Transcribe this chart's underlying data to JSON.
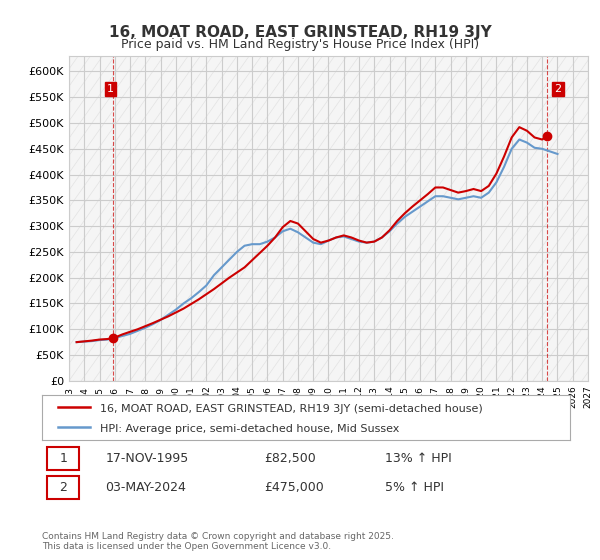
{
  "title": "16, MOAT ROAD, EAST GRINSTEAD, RH19 3JY",
  "subtitle": "Price paid vs. HM Land Registry's House Price Index (HPI)",
  "ylabel": "",
  "ylim": [
    0,
    630000
  ],
  "yticks": [
    0,
    50000,
    100000,
    150000,
    200000,
    250000,
    300000,
    350000,
    400000,
    450000,
    500000,
    550000,
    600000
  ],
  "ytick_labels": [
    "£0",
    "£50K",
    "£100K",
    "£150K",
    "£200K",
    "£250K",
    "£300K",
    "£350K",
    "£400K",
    "£450K",
    "£500K",
    "£550K",
    "£600K"
  ],
  "price_color": "#cc0000",
  "hpi_color": "#6699cc",
  "marker_color_1": "#cc0000",
  "marker_color_2": "#cc0000",
  "grid_color": "#cccccc",
  "bg_color": "#ffffff",
  "plot_bg_color": "#f5f5f5",
  "legend_label_price": "16, MOAT ROAD, EAST GRINSTEAD, RH19 3JY (semi-detached house)",
  "legend_label_hpi": "HPI: Average price, semi-detached house, Mid Sussex",
  "point1_label": "1",
  "point1_date": "17-NOV-1995",
  "point1_price": 82500,
  "point1_text": "17-NOV-1995          £82,500          13% ↑ HPI",
  "point2_label": "2",
  "point2_date": "03-MAY-2024",
  "point2_price": 475000,
  "point2_text": "03-MAY-2024          £475,000          5% ↑ HPI",
  "footer": "Contains HM Land Registry data © Crown copyright and database right 2025.\nThis data is licensed under the Open Government Licence v3.0.",
  "title_fontsize": 11,
  "subtitle_fontsize": 9,
  "hpi_data_x": [
    1993.5,
    1994.0,
    1994.5,
    1995.0,
    1995.5,
    1996.0,
    1996.5,
    1997.0,
    1997.5,
    1998.0,
    1998.5,
    1999.0,
    1999.5,
    2000.0,
    2000.5,
    2001.0,
    2001.5,
    2002.0,
    2002.5,
    2003.0,
    2003.5,
    2004.0,
    2004.5,
    2005.0,
    2005.5,
    2006.0,
    2006.5,
    2007.0,
    2007.5,
    2008.0,
    2008.5,
    2009.0,
    2009.5,
    2010.0,
    2010.5,
    2011.0,
    2011.5,
    2012.0,
    2012.5,
    2013.0,
    2013.5,
    2014.0,
    2014.5,
    2015.0,
    2015.5,
    2016.0,
    2016.5,
    2017.0,
    2017.5,
    2018.0,
    2018.5,
    2019.0,
    2019.5,
    2020.0,
    2020.5,
    2021.0,
    2021.5,
    2022.0,
    2022.5,
    2023.0,
    2023.5,
    2024.0,
    2024.5,
    2025.0
  ],
  "hpi_data_y": [
    75000,
    76000,
    77000,
    79000,
    80000,
    83000,
    87000,
    91000,
    97000,
    103000,
    110000,
    118000,
    128000,
    138000,
    150000,
    160000,
    172000,
    185000,
    205000,
    220000,
    235000,
    250000,
    262000,
    265000,
    265000,
    270000,
    278000,
    290000,
    295000,
    288000,
    278000,
    268000,
    265000,
    272000,
    278000,
    280000,
    275000,
    270000,
    268000,
    270000,
    278000,
    290000,
    305000,
    318000,
    328000,
    338000,
    348000,
    358000,
    358000,
    355000,
    352000,
    355000,
    358000,
    355000,
    365000,
    385000,
    415000,
    450000,
    468000,
    462000,
    452000,
    450000,
    445000,
    440000
  ],
  "price_data_x": [
    1993.5,
    1995.88,
    2024.33,
    2025.0
  ],
  "price_data_y": [
    75000,
    82500,
    475000,
    462000
  ]
}
